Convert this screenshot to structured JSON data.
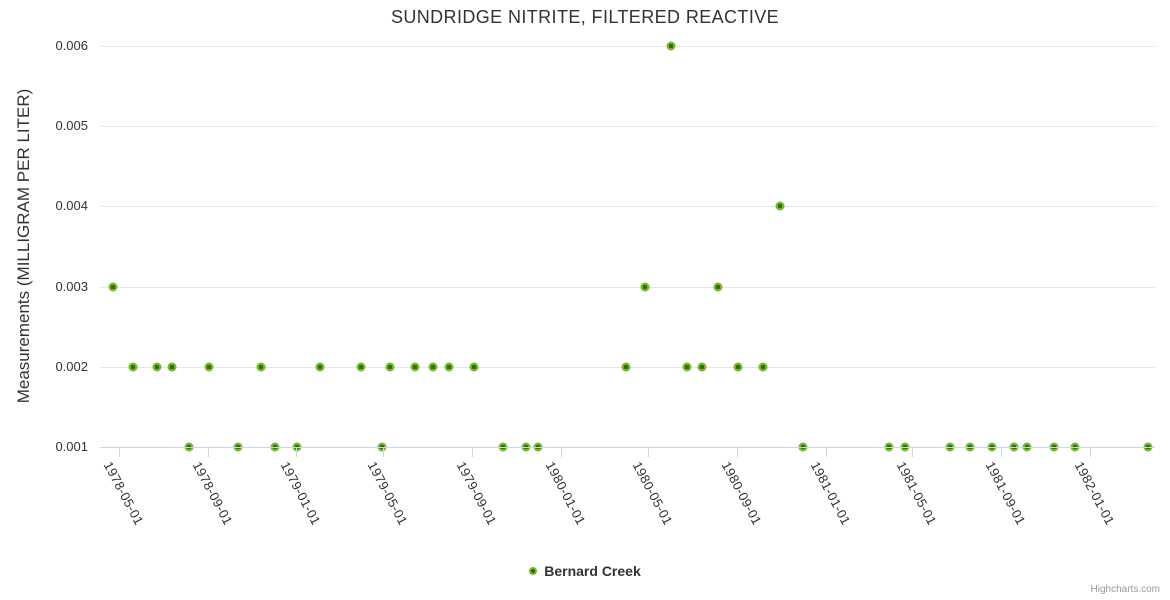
{
  "chart": {
    "title": "SUNDRIDGE NITRITE, FILTERED REACTIVE",
    "credits_label": "Highcharts.com"
  },
  "colors": {
    "marker_outer": "#77b62c",
    "marker_inner": "#2e6c0a",
    "gridline": "#e6e6e6",
    "axis_line": "#ccd6eb",
    "text": "#333333",
    "credits_text": "#999999",
    "background": "#ffffff"
  },
  "chart_data": {
    "type": "scatter",
    "title": "SUNDRIDGE NITRITE, FILTERED REACTIVE",
    "xlabel": "",
    "ylabel": "Measurements (MILLIGRAM PER LITER)",
    "x_range": [
      "1978-04-05",
      "1982-04-01"
    ],
    "ylim": [
      0.001,
      0.006
    ],
    "grid": "horizontal-only",
    "legend_position": "bottom-center",
    "x_ticks": [
      "1978-05-01",
      "1978-09-01",
      "1979-01-01",
      "1979-05-01",
      "1979-09-01",
      "1980-01-01",
      "1980-05-01",
      "1980-09-01",
      "1981-01-01",
      "1981-05-01",
      "1981-09-01",
      "1982-01-01"
    ],
    "y_ticks": [
      {
        "value": 0.001,
        "label": "0.001"
      },
      {
        "value": 0.002,
        "label": "0.002"
      },
      {
        "value": 0.003,
        "label": "0.003"
      },
      {
        "value": 0.004,
        "label": "0.004"
      },
      {
        "value": 0.005,
        "label": "0.005"
      },
      {
        "value": 0.006,
        "label": "0.006"
      }
    ],
    "series": [
      {
        "name": "Bernard Creek",
        "points": [
          {
            "date": "1978-04-23",
            "value": 0.003
          },
          {
            "date": "1978-05-20",
            "value": 0.002
          },
          {
            "date": "1978-06-23",
            "value": 0.002
          },
          {
            "date": "1978-07-13",
            "value": 0.002
          },
          {
            "date": "1978-08-06",
            "value": 0.001
          },
          {
            "date": "1978-09-03",
            "value": 0.002
          },
          {
            "date": "1978-10-13",
            "value": 0.001
          },
          {
            "date": "1978-11-14",
            "value": 0.002
          },
          {
            "date": "1978-12-02",
            "value": 0.001
          },
          {
            "date": "1979-01-02",
            "value": 0.001
          },
          {
            "date": "1979-02-03",
            "value": 0.002
          },
          {
            "date": "1979-03-31",
            "value": 0.002
          },
          {
            "date": "1979-04-29",
            "value": 0.001
          },
          {
            "date": "1979-05-11",
            "value": 0.002
          },
          {
            "date": "1979-06-14",
            "value": 0.002
          },
          {
            "date": "1979-07-09",
            "value": 0.002
          },
          {
            "date": "1979-07-31",
            "value": 0.002
          },
          {
            "date": "1979-09-03",
            "value": 0.002
          },
          {
            "date": "1979-10-14",
            "value": 0.001
          },
          {
            "date": "1979-11-15",
            "value": 0.001
          },
          {
            "date": "1979-12-01",
            "value": 0.001
          },
          {
            "date": "1980-03-31",
            "value": 0.002
          },
          {
            "date": "1980-04-26",
            "value": 0.003
          },
          {
            "date": "1980-06-02",
            "value": 0.006
          },
          {
            "date": "1980-06-23",
            "value": 0.002
          },
          {
            "date": "1980-07-15",
            "value": 0.002
          },
          {
            "date": "1980-08-05",
            "value": 0.003
          },
          {
            "date": "1980-09-02",
            "value": 0.002
          },
          {
            "date": "1980-10-06",
            "value": 0.002
          },
          {
            "date": "1980-10-30",
            "value": 0.004
          },
          {
            "date": "1980-12-01",
            "value": 0.001
          },
          {
            "date": "1981-03-29",
            "value": 0.001
          },
          {
            "date": "1981-04-21",
            "value": 0.001
          },
          {
            "date": "1981-06-22",
            "value": 0.001
          },
          {
            "date": "1981-07-20",
            "value": 0.001
          },
          {
            "date": "1981-08-19",
            "value": 0.001
          },
          {
            "date": "1981-09-18",
            "value": 0.001
          },
          {
            "date": "1981-10-06",
            "value": 0.001
          },
          {
            "date": "1981-11-12",
            "value": 0.001
          },
          {
            "date": "1981-12-12",
            "value": 0.001
          },
          {
            "date": "1982-03-23",
            "value": 0.001
          }
        ]
      }
    ]
  }
}
